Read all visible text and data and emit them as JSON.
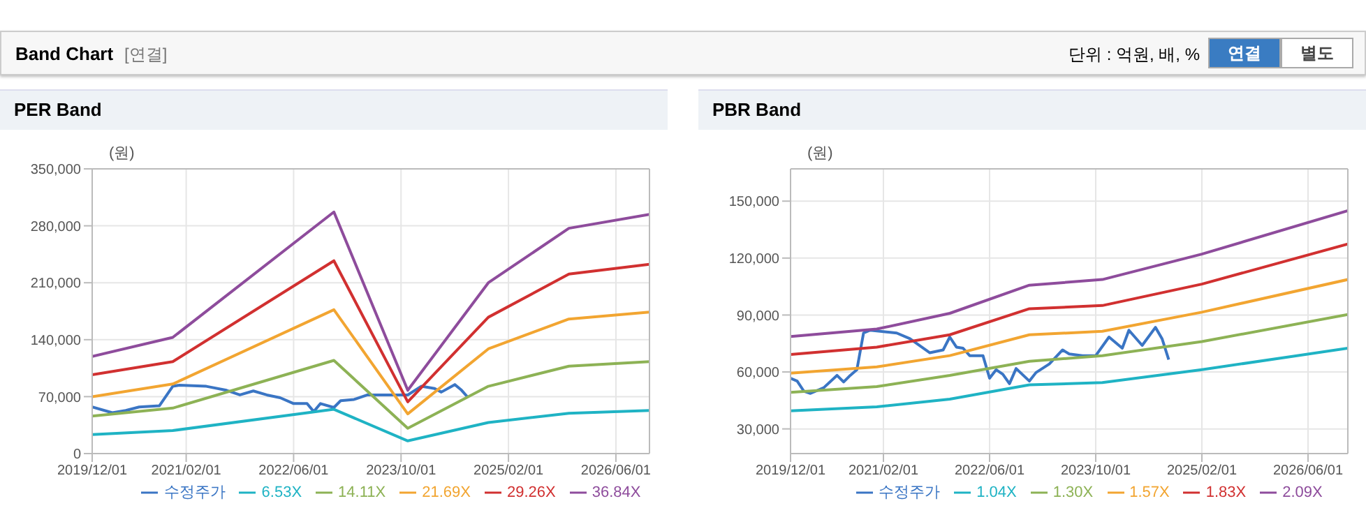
{
  "chart_data": [
    {
      "type": "line",
      "title": "PER Band",
      "ylabel": "(원)",
      "annotations": [
        "Band Chart",
        "[연결]",
        "단위 : 억원, 배, %",
        "연결",
        "별도"
      ],
      "xlim": [
        "2019-12",
        "2026-11"
      ],
      "xticks": [
        {
          "value": "2019-12-01",
          "label": "2019/12/01"
        },
        {
          "value": "2021-02-01",
          "label": "2021/02/01"
        },
        {
          "value": "2022-06-01",
          "label": "2022/06/01"
        },
        {
          "value": "2023-10-01",
          "label": "2023/10/01"
        },
        {
          "value": "2025-02-01",
          "label": "2025/02/01"
        },
        {
          "value": "2026-06-01",
          "label": "2026/06/01"
        }
      ],
      "ylim": [
        0,
        350000
      ],
      "yticks": [
        0,
        {
          "value": 70000,
          "label": "70,000"
        },
        {
          "value": 140000,
          "label": "140,000"
        },
        {
          "value": 210000,
          "label": "210,000"
        },
        {
          "value": 280000,
          "label": "280,000"
        },
        {
          "value": 350000,
          "label": "350,000"
        }
      ],
      "grid": true,
      "legend": "bottom",
      "line_style": "solid",
      "series": [
        {
          "name": "수정주가",
          "color": "#3a75c4",
          "x": [
            "2019-12",
            "2020-03",
            "2020-05",
            "2020-07",
            "2020-10",
            "2020-12",
            "2021-01",
            "2021-05",
            "2021-08",
            "2021-10",
            "2021-12",
            "2022-02",
            "2022-04",
            "2022-06",
            "2022-08",
            "2022-09",
            "2022-10",
            "2022-12",
            "2023-01",
            "2023-03",
            "2023-05",
            "2023-07",
            "2023-11",
            "2024-01",
            "2024-03",
            "2024-04",
            "2024-06",
            "2024-07",
            "2024-08"
          ],
          "values": [
            57300,
            50200,
            53000,
            57300,
            58700,
            82700,
            84100,
            82700,
            77800,
            72100,
            77000,
            72100,
            68600,
            61500,
            61500,
            51600,
            61500,
            56600,
            65000,
            66500,
            72100,
            72100,
            72100,
            82700,
            80000,
            75600,
            84800,
            78000,
            68600
          ]
        },
        {
          "name": "6.53X",
          "color": "#1fb3c4",
          "values": [
            23300,
            28300,
            54400,
            15600,
            38200,
            49500,
            53000
          ]
        },
        {
          "name": "14.11X",
          "color": "#8db255",
          "values": [
            46000,
            55900,
            114500,
            31100,
            82700,
            107500,
            113100
          ]
        },
        {
          "name": "21.69X",
          "color": "#f2a531",
          "values": [
            70000,
            85500,
            176800,
            48800,
            128700,
            165400,
            174000
          ]
        },
        {
          "name": "29.26X",
          "color": "#d13030",
          "values": [
            96900,
            113000,
            237000,
            63600,
            167600,
            220600,
            232600
          ]
        },
        {
          "name": "36.84X",
          "color": "#8e4c9c",
          "values": [
            119500,
            142800,
            297000,
            77800,
            210000,
            277000,
            294000
          ]
        }
      ],
      "x": [
        "2019-12",
        "2020-12",
        "2022-12",
        "2023-11",
        "2024-11",
        "2025-11",
        "2026-11"
      ]
    },
    {
      "type": "line",
      "title": "PBR Band",
      "ylabel": "(원)",
      "xlim": [
        "2019-12",
        "2026-12"
      ],
      "xticks": [
        {
          "value": "2019-12-01",
          "label": "2019/12/01"
        },
        {
          "value": "2021-02-01",
          "label": "2021/02/01"
        },
        {
          "value": "2022-06-01",
          "label": "2022/06/01"
        },
        {
          "value": "2023-10-01",
          "label": "2023/10/01"
        },
        {
          "value": "2025-02-01",
          "label": "2025/02/01"
        },
        {
          "value": "2026-06-01",
          "label": "2026/06/01"
        }
      ],
      "ylim": [
        17000,
        167000
      ],
      "yticks": [
        {
          "value": 30000,
          "label": "30,000"
        },
        {
          "value": 60000,
          "label": "60,000"
        },
        {
          "value": 90000,
          "label": "90,000"
        },
        {
          "value": 120000,
          "label": "120,000"
        },
        {
          "value": 150000,
          "label": "150,000"
        }
      ],
      "grid": true,
      "legend": "bottom",
      "line_style": "solid",
      "series": [
        {
          "name": "수정주가",
          "color": "#3a75c4",
          "x": [
            "2019-12",
            "2020-01",
            "2020-02",
            "2020-03",
            "2020-05",
            "2020-07",
            "2020-08",
            "2020-09",
            "2020-10",
            "2020-11",
            "2020-12",
            "2021-04",
            "2021-06",
            "2021-09",
            "2021-11",
            "2021-12",
            "2022-01",
            "2022-02",
            "2022-03",
            "2022-05",
            "2022-06",
            "2022-07",
            "2022-08",
            "2022-09",
            "2022-10",
            "2022-12",
            "2023-01",
            "2023-03",
            "2023-05",
            "2023-06",
            "2023-08",
            "2023-10",
            "2023-12",
            "2024-02",
            "2024-03",
            "2024-05",
            "2024-07",
            "2024-08",
            "2024-09"
          ],
          "values": [
            56700,
            55200,
            49900,
            48700,
            51700,
            58200,
            54700,
            58200,
            61200,
            80500,
            82000,
            80500,
            77500,
            70100,
            71600,
            78400,
            73100,
            72500,
            68600,
            68600,
            56700,
            61200,
            58800,
            53800,
            61800,
            55200,
            59700,
            64200,
            71600,
            69500,
            68600,
            68600,
            78400,
            72500,
            82000,
            74000,
            83500,
            77500,
            66500
          ]
        },
        {
          "name": "1.04X",
          "color": "#1fb3c4",
          "values": [
            39500,
            41600,
            45700,
            53200,
            54400,
            61200,
            72500
          ]
        },
        {
          "name": "1.30X",
          "color": "#8db255",
          "values": [
            49300,
            52300,
            58200,
            65600,
            68600,
            76000,
            90300
          ]
        },
        {
          "name": "1.57X",
          "color": "#f2a531",
          "values": [
            59400,
            62700,
            68600,
            79600,
            81400,
            91500,
            108700
          ]
        },
        {
          "name": "1.83X",
          "color": "#d13030",
          "values": [
            69200,
            73100,
            79600,
            93300,
            95000,
            106300,
            127400
          ]
        },
        {
          "name": "2.09X",
          "color": "#8e4c9c",
          "values": [
            78700,
            82600,
            90900,
            105700,
            108700,
            122100,
            145000
          ]
        }
      ],
      "x": [
        "2019-12",
        "2021-01",
        "2021-12",
        "2022-12",
        "2023-11",
        "2025-02",
        "2026-12"
      ]
    }
  ]
}
